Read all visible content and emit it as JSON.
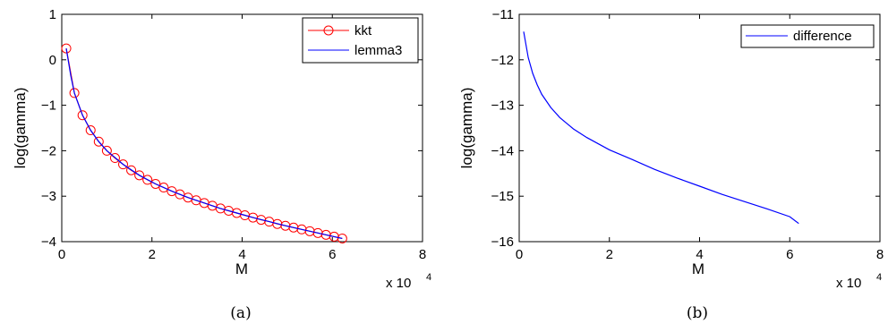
{
  "chart_data": [
    {
      "type": "line",
      "caption": "(a)",
      "xlabel": "M",
      "ylabel": "log(gamma)",
      "x_multiplier": "x 10",
      "x_multiplier_exp": "4",
      "xlim": [
        0,
        8
      ],
      "ylim": [
        -4,
        1
      ],
      "xticks": [
        0,
        2,
        4,
        6,
        8
      ],
      "yticks": [
        1,
        0,
        -1,
        -2,
        -3,
        -4
      ],
      "grid": false,
      "legend_position": "top-right",
      "colors": {
        "kkt": "#ff0000",
        "lemma3": "#0000ff"
      },
      "series": [
        {
          "name": "kkt",
          "style": "line-with-circle-markers",
          "x": [
            0.1,
            0.28,
            0.46,
            0.64,
            0.82,
            1.0,
            1.18,
            1.36,
            1.54,
            1.72,
            1.9,
            2.08,
            2.26,
            2.44,
            2.62,
            2.8,
            2.98,
            3.16,
            3.34,
            3.52,
            3.7,
            3.88,
            4.06,
            4.24,
            4.42,
            4.6,
            4.78,
            4.96,
            5.14,
            5.32,
            5.5,
            5.68,
            5.86,
            6.04,
            6.22
          ],
          "y": [
            0.25,
            -0.73,
            -1.22,
            -1.55,
            -1.8,
            -2.0,
            -2.16,
            -2.3,
            -2.43,
            -2.54,
            -2.64,
            -2.73,
            -2.81,
            -2.89,
            -2.96,
            -3.03,
            -3.09,
            -3.15,
            -3.21,
            -3.27,
            -3.32,
            -3.37,
            -3.42,
            -3.47,
            -3.52,
            -3.56,
            -3.61,
            -3.65,
            -3.69,
            -3.73,
            -3.77,
            -3.81,
            -3.85,
            -3.89,
            -3.93
          ]
        },
        {
          "name": "lemma3",
          "style": "line",
          "x": [
            0.1,
            0.2,
            0.28,
            0.46,
            0.64,
            0.82,
            1.0,
            1.36,
            1.72,
            2.08,
            2.44,
            2.8,
            3.16,
            3.52,
            3.88,
            4.24,
            4.6,
            4.96,
            5.32,
            5.68,
            6.04,
            6.22
          ],
          "y": [
            0.25,
            -0.35,
            -0.73,
            -1.22,
            -1.55,
            -1.8,
            -2.0,
            -2.3,
            -2.54,
            -2.73,
            -2.89,
            -3.03,
            -3.15,
            -3.27,
            -3.37,
            -3.47,
            -3.56,
            -3.65,
            -3.73,
            -3.81,
            -3.89,
            -3.93
          ]
        }
      ]
    },
    {
      "type": "line",
      "caption": "(b)",
      "xlabel": "M",
      "ylabel": "log(gamma)",
      "x_multiplier": "x 10",
      "x_multiplier_exp": "4",
      "xlim": [
        0,
        8
      ],
      "ylim": [
        -16,
        -11
      ],
      "xticks": [
        0,
        2,
        4,
        6,
        8
      ],
      "yticks": [
        -11,
        -12,
        -13,
        -14,
        -15,
        -16
      ],
      "grid": false,
      "legend_position": "top-right",
      "colors": {
        "difference": "#0000ff"
      },
      "series": [
        {
          "name": "difference",
          "style": "line",
          "x": [
            0.1,
            0.2,
            0.3,
            0.4,
            0.5,
            0.7,
            0.9,
            1.2,
            1.5,
            2.0,
            2.5,
            3.0,
            3.5,
            4.0,
            4.5,
            5.0,
            5.5,
            6.0,
            6.2
          ],
          "y": [
            -11.38,
            -11.95,
            -12.3,
            -12.55,
            -12.76,
            -13.05,
            -13.27,
            -13.52,
            -13.71,
            -13.98,
            -14.19,
            -14.41,
            -14.6,
            -14.78,
            -14.96,
            -15.12,
            -15.28,
            -15.45,
            -15.6
          ]
        }
      ]
    }
  ]
}
